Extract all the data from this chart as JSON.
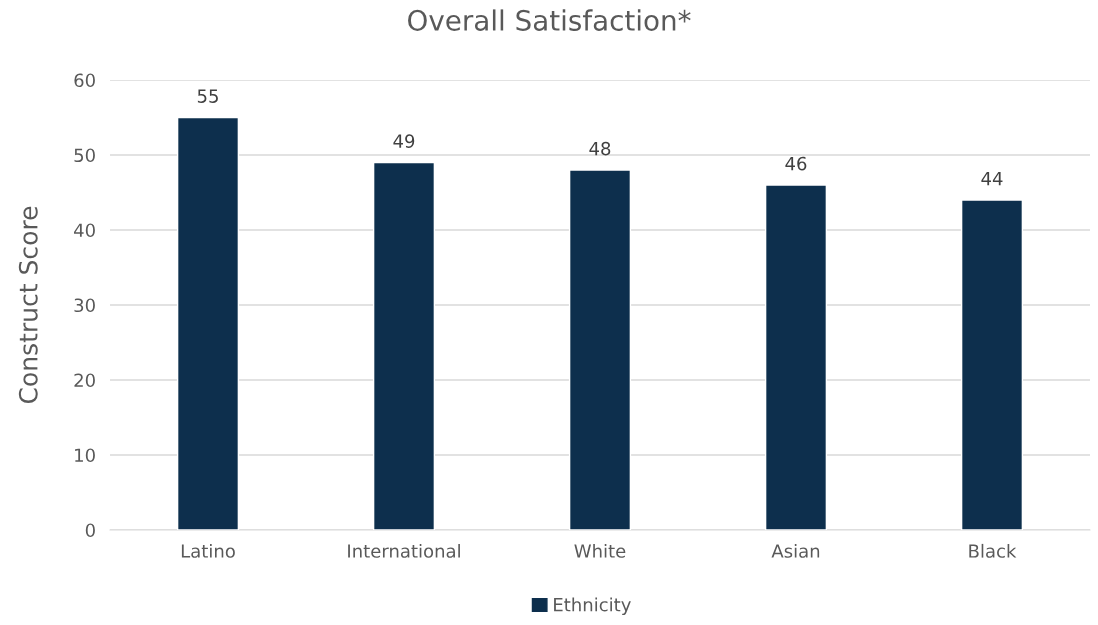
{
  "chart_data": {
    "type": "bar",
    "title": "Overall Satisfaction*",
    "ylabel": "Construct Score",
    "categories": [
      "Latino",
      "International",
      "White",
      "Asian",
      "Black"
    ],
    "series": [
      {
        "name": "Ethnicity",
        "color": "#0d2f4d",
        "values": [
          55,
          49,
          48,
          46,
          44
        ]
      }
    ],
    "ylim": [
      0,
      60
    ],
    "yticks": [
      0,
      10,
      20,
      30,
      40,
      50,
      60
    ],
    "grid": "y",
    "legend": "bottom",
    "data_labels": true
  }
}
